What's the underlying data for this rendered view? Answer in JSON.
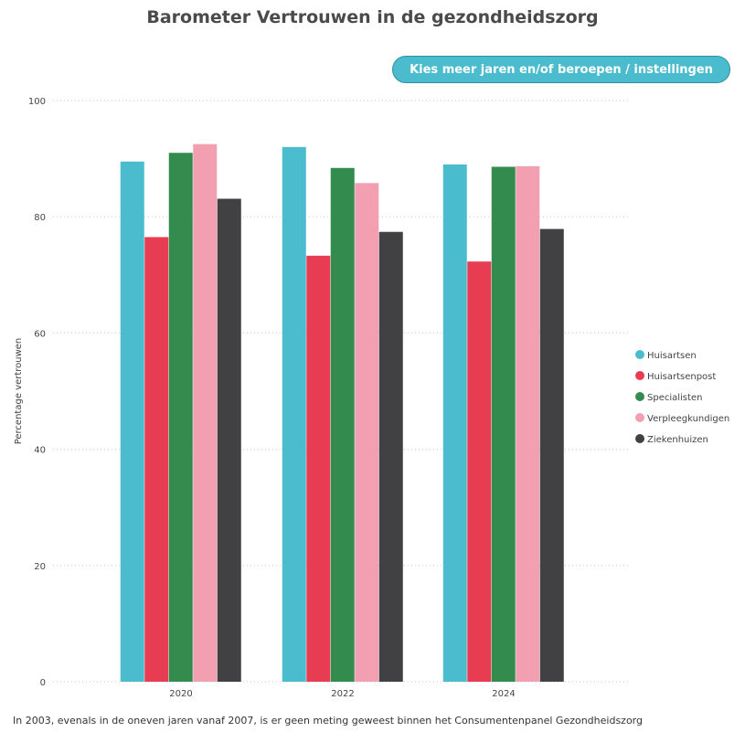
{
  "title": "Barometer Vertrouwen in de gezondheidszorg",
  "filter_button_label": "Kies meer jaren en/of beroepen / instellingen",
  "footnote": "In 2003, evenals in de oneven jaren vanaf 2007, is er geen meting geweest binnen het Consumentenpanel Gezondheidszorg",
  "chart_data": {
    "type": "bar",
    "title": "Barometer Vertrouwen in de gezondheidszorg",
    "xlabel": "",
    "ylabel": "Percentage vertrouwen",
    "ylim": [
      0,
      100
    ],
    "yticks": [
      0,
      20,
      40,
      60,
      80,
      100
    ],
    "grid": true,
    "legend_position": "right",
    "categories": [
      "2020",
      "2022",
      "2024"
    ],
    "series": [
      {
        "name": "Huisartsen",
        "color": "#4bbccd",
        "values": [
          89.5,
          92.0,
          89.0
        ]
      },
      {
        "name": "Huisartsenpost",
        "color": "#e83c52",
        "values": [
          76.5,
          73.3,
          72.3
        ]
      },
      {
        "name": "Specialisten",
        "color": "#338c4e",
        "values": [
          91.0,
          88.4,
          88.6
        ]
      },
      {
        "name": "Verpleegkundigen",
        "color": "#f29fb2",
        "values": [
          92.5,
          85.8,
          88.7
        ]
      },
      {
        "name": "Ziekenhuizen",
        "color": "#414042",
        "values": [
          83.1,
          77.4,
          77.9
        ]
      }
    ]
  }
}
